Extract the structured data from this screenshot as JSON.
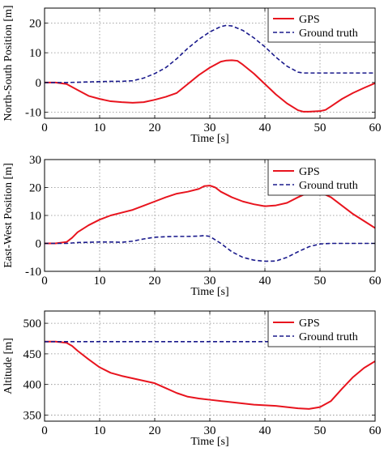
{
  "chart_data": [
    {
      "type": "line",
      "xlabel": "Time [s]",
      "ylabel": "North-South Position [m]",
      "xlim": [
        0,
        60
      ],
      "ylim": [
        -12,
        25
      ],
      "xticks": [
        0,
        10,
        20,
        30,
        40,
        50,
        60
      ],
      "yticks": [
        -10,
        0,
        10,
        20
      ],
      "grid": true,
      "legend_position": "top-right",
      "series": [
        {
          "name": "GPS",
          "color": "#e8141e",
          "style": "solid",
          "x": [
            0,
            2,
            4,
            6,
            8,
            10,
            12,
            14,
            16,
            18,
            20,
            22,
            24,
            26,
            28,
            30,
            32,
            33,
            34,
            35,
            36,
            38,
            40,
            42,
            44,
            46,
            47,
            48,
            50,
            51,
            52,
            54,
            56,
            58,
            60
          ],
          "y": [
            0,
            0,
            -0.5,
            -2.5,
            -4.5,
            -5.5,
            -6.3,
            -6.6,
            -6.8,
            -6.6,
            -5.8,
            -4.8,
            -3.5,
            -0.5,
            2.5,
            5,
            7,
            7.4,
            7.5,
            7.3,
            6,
            3,
            -0.5,
            -4,
            -7,
            -9.3,
            -9.8,
            -9.8,
            -9.6,
            -9.2,
            -8,
            -5.5,
            -3.5,
            -1.8,
            -0.2
          ]
        },
        {
          "name": "Ground truth",
          "color": "#1a1a8c",
          "style": "dashed",
          "x": [
            0,
            2,
            4,
            6,
            8,
            10,
            12,
            14,
            16,
            18,
            20,
            22,
            24,
            26,
            28,
            30,
            32,
            33,
            34,
            36,
            38,
            40,
            42,
            44,
            46,
            47,
            48,
            50,
            52,
            54,
            56,
            58,
            60
          ],
          "y": [
            0,
            0,
            0,
            0.1,
            0.2,
            0.3,
            0.4,
            0.4,
            0.6,
            1.5,
            3,
            5,
            8,
            11.5,
            14.5,
            17,
            18.8,
            19.2,
            19,
            17.5,
            15,
            12,
            8.5,
            5.5,
            3.5,
            3.2,
            3.2,
            3.2,
            3.2,
            3.2,
            3.2,
            3.2,
            3.2
          ]
        }
      ]
    },
    {
      "type": "line",
      "xlabel": "Time [s]",
      "ylabel": "East-West Position [m]",
      "xlim": [
        0,
        60
      ],
      "ylim": [
        -10,
        30
      ],
      "xticks": [
        0,
        10,
        20,
        30,
        40,
        50,
        60
      ],
      "yticks": [
        -10,
        0,
        10,
        20,
        30
      ],
      "grid": true,
      "legend_position": "top-right",
      "series": [
        {
          "name": "GPS",
          "color": "#e8141e",
          "style": "solid",
          "x": [
            0,
            2,
            4,
            5,
            6,
            8,
            10,
            12,
            14,
            16,
            18,
            20,
            22,
            24,
            26,
            28,
            29,
            30,
            31,
            32,
            34,
            36,
            38,
            40,
            42,
            44,
            46,
            48,
            49,
            50,
            52,
            54,
            56,
            58,
            60
          ],
          "y": [
            0,
            0,
            0.5,
            2,
            4,
            6.5,
            8.5,
            10,
            11,
            12,
            13.5,
            15,
            16.5,
            17.8,
            18.5,
            19.5,
            20.5,
            20.7,
            20,
            18.5,
            16.5,
            15,
            14,
            13.3,
            13.6,
            14.5,
            16.5,
            18.3,
            18.7,
            18.3,
            16.5,
            13.5,
            10.5,
            8,
            5.5
          ]
        },
        {
          "name": "Ground truth",
          "color": "#1a1a8c",
          "style": "dashed",
          "x": [
            0,
            2,
            4,
            6,
            8,
            10,
            12,
            14,
            16,
            18,
            20,
            22,
            24,
            26,
            28,
            29,
            30,
            32,
            34,
            36,
            38,
            40,
            42,
            44,
            46,
            48,
            50,
            52,
            54,
            56,
            58,
            60
          ],
          "y": [
            0,
            0,
            0,
            0.3,
            0.4,
            0.5,
            0.5,
            0.4,
            0.8,
            1.6,
            2.2,
            2.4,
            2.5,
            2.5,
            2.6,
            2.8,
            2.5,
            0,
            -3,
            -5,
            -6,
            -6.4,
            -6.3,
            -5,
            -3,
            -1.2,
            -0.2,
            0,
            0,
            0,
            0,
            0
          ]
        }
      ]
    },
    {
      "type": "line",
      "xlabel": "Time [s]",
      "ylabel": "Altitude [m]",
      "xlim": [
        0,
        60
      ],
      "ylim": [
        340,
        520
      ],
      "xticks": [
        0,
        10,
        20,
        30,
        40,
        50,
        60
      ],
      "yticks": [
        350,
        400,
        450,
        500
      ],
      "grid": true,
      "legend_position": "top-right",
      "series": [
        {
          "name": "GPS",
          "color": "#e8141e",
          "style": "solid",
          "x": [
            0,
            2,
            4,
            5,
            6,
            8,
            10,
            12,
            14,
            16,
            18,
            20,
            22,
            24,
            26,
            28,
            30,
            32,
            34,
            36,
            38,
            40,
            42,
            44,
            46,
            48,
            50,
            52,
            54,
            56,
            58,
            60
          ],
          "y": [
            470,
            470,
            468,
            463,
            455,
            441,
            428,
            419,
            414,
            410,
            406,
            402,
            394,
            386,
            380,
            377,
            375,
            373,
            371,
            369,
            367,
            366,
            365,
            363,
            361,
            360,
            363,
            373,
            393,
            412,
            427,
            438
          ]
        },
        {
          "name": "Ground truth",
          "color": "#1a1a8c",
          "style": "dashed",
          "x": [
            0,
            10,
            20,
            30,
            40,
            50,
            60
          ],
          "y": [
            470,
            470,
            470,
            470,
            470,
            470,
            470
          ]
        }
      ]
    }
  ]
}
